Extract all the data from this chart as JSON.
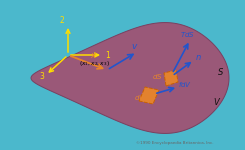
{
  "bg_color": "#4BB8CC",
  "blob_color": "#9A5878",
  "blob_edge_color": "#7A4060",
  "orange_color": "#E8852A",
  "orange_edge": "#C86000",
  "blue_arrow_color": "#2255CC",
  "yellow_color": "#FFDD00",
  "text_color_white": "#FFFFFF",
  "text_color_black": "#111111",
  "text_color_blue": "#2255CC",
  "text_color_orange": "#E8852A",
  "copyright_text": "©1990 Encyclopaedia Britannica, Inc.",
  "copyright_color": "#666666",
  "fig_width": 2.45,
  "fig_height": 1.5,
  "dpi": 100
}
